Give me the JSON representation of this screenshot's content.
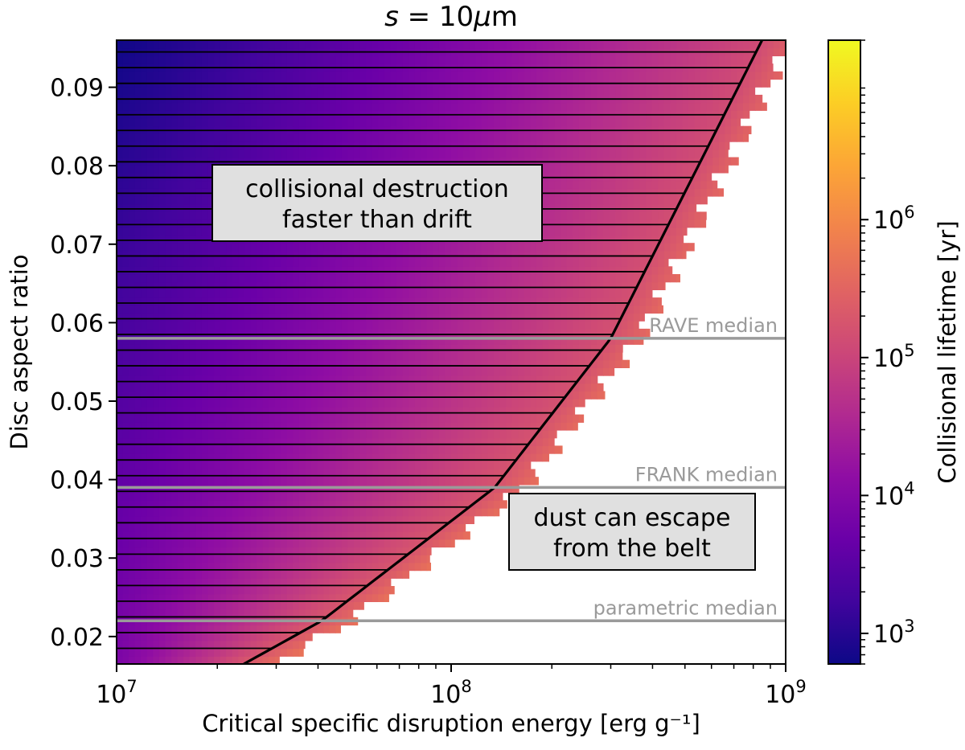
{
  "chart_data": {
    "type": "heatmap",
    "title": "s = 10μm",
    "title_parts": {
      "symbol": "s",
      "equals": " = 10",
      "mu": "μ",
      "unit": "m"
    },
    "xlabel": "Critical specific disruption energy [erg g⁻¹]",
    "ylabel": "Disc aspect ratio",
    "xscale": "log",
    "xlim": [
      10000000,
      1000000000
    ],
    "ylim": [
      0.0165,
      0.096
    ],
    "x_ticks": [
      {
        "value": 10000000,
        "base": "10",
        "exp": "7"
      },
      {
        "value": 100000000,
        "base": "10",
        "exp": "8"
      },
      {
        "value": 1000000000,
        "base": "10",
        "exp": "9"
      }
    ],
    "y_ticks": [
      {
        "value": 0.02,
        "label": "0.02"
      },
      {
        "value": 0.03,
        "label": "0.03"
      },
      {
        "value": 0.04,
        "label": "0.04"
      },
      {
        "value": 0.05,
        "label": "0.05"
      },
      {
        "value": 0.06,
        "label": "0.06"
      },
      {
        "value": 0.07,
        "label": "0.07"
      },
      {
        "value": 0.08,
        "label": "0.08"
      },
      {
        "value": 0.09,
        "label": "0.09"
      }
    ],
    "boundary_curve": {
      "description": "critical line separating destruction-dominated and drift-dominated regimes",
      "points": [
        [
          24000000,
          0.0165
        ],
        [
          41000000,
          0.022
        ],
        [
          135000000,
          0.039
        ],
        [
          300000000,
          0.058
        ],
        [
          850000000,
          0.096
        ]
      ]
    },
    "hatch_spacing": 0.002,
    "reference_lines": [
      {
        "name": "RAVE median",
        "y": 0.058,
        "label": "RAVE median"
      },
      {
        "name": "FRANK median",
        "y": 0.039,
        "label": "FRANK median"
      },
      {
        "name": "parametric median",
        "y": 0.022,
        "label": "parametric median"
      }
    ],
    "annotations": [
      {
        "lines": [
          "collisional destruction",
          "faster than drift"
        ]
      },
      {
        "lines": [
          "dust can escape",
          "from the belt"
        ]
      }
    ],
    "colorbar": {
      "label": "Collisional lifetime [yr]",
      "scale": "log",
      "range": [
        600,
        20000000
      ],
      "colormap": "plasma",
      "ticks": [
        {
          "value": 1000,
          "base": "10",
          "exp": "3"
        },
        {
          "value": 10000,
          "base": "10",
          "exp": "4"
        },
        {
          "value": 100000,
          "base": "10",
          "exp": "5"
        },
        {
          "value": 1000000,
          "base": "10",
          "exp": "6"
        }
      ]
    },
    "lifetime_model": {
      "description": "log10 lifetime across the coloured region",
      "corner_top_left": 2.8,
      "corner_bottom_left": 3.9,
      "edge_boundary_top": 5.1,
      "edge_boundary_bottom": 5.3
    }
  },
  "colors": {
    "reference_line": "#9a9a9a",
    "annotation_box": "#e0e0e0",
    "axis": "#000000"
  }
}
